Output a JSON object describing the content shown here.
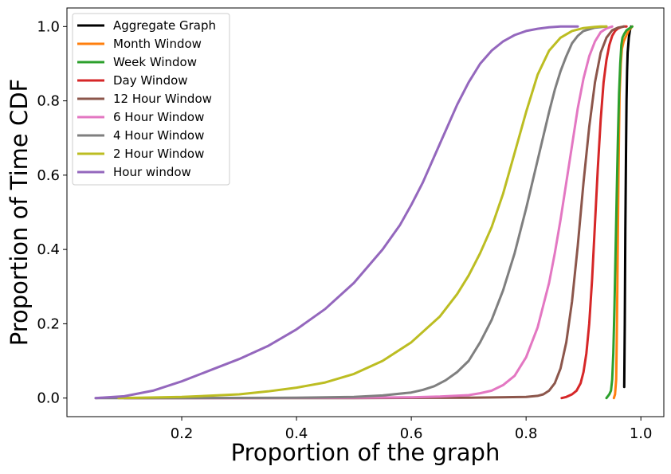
{
  "chart_data": {
    "type": "line",
    "title": "",
    "xlabel": "Proportion of the graph",
    "ylabel": "Proportion of Time CDF",
    "xlim": [
      0.0,
      1.04
    ],
    "ylim": [
      -0.05,
      1.05
    ],
    "xticks": [
      0.2,
      0.4,
      0.6,
      0.8,
      1.0
    ],
    "xtick_labels": [
      "0.2",
      "0.4",
      "0.6",
      "0.8",
      "1.0"
    ],
    "yticks": [
      0.0,
      0.2,
      0.4,
      0.6,
      0.8,
      1.0
    ],
    "ytick_labels": [
      "0.0",
      "0.2",
      "0.4",
      "0.6",
      "0.8",
      "1.0"
    ],
    "grid": false,
    "legend_position": "top-left",
    "series": [
      {
        "name": "Aggregate Graph",
        "color": "#000000",
        "x": [
          0.971,
          0.972,
          0.973,
          0.974,
          0.975,
          0.976,
          0.977,
          0.979,
          0.981,
          0.983
        ],
        "y": [
          0.03,
          0.2,
          0.45,
          0.65,
          0.8,
          0.88,
          0.93,
          0.97,
          0.99,
          1.0
        ]
      },
      {
        "name": "Month Window",
        "color": "#ff7f0e",
        "x": [
          0.953,
          0.955,
          0.957,
          0.958,
          0.959,
          0.96,
          0.961,
          0.962,
          0.963,
          0.965,
          0.967,
          0.97,
          0.973,
          0.976,
          0.979,
          0.982,
          0.985
        ],
        "y": [
          0.0,
          0.01,
          0.05,
          0.15,
          0.3,
          0.45,
          0.6,
          0.72,
          0.82,
          0.9,
          0.94,
          0.96,
          0.97,
          0.98,
          0.99,
          0.995,
          1.0
        ]
      },
      {
        "name": "Week Window",
        "color": "#2ca02c",
        "x": [
          0.94,
          0.945,
          0.948,
          0.95,
          0.952,
          0.954,
          0.956,
          0.958,
          0.96,
          0.962,
          0.964,
          0.966,
          0.968,
          0.971,
          0.975,
          0.98,
          0.985
        ],
        "y": [
          0.0,
          0.01,
          0.02,
          0.05,
          0.12,
          0.25,
          0.4,
          0.55,
          0.7,
          0.82,
          0.9,
          0.95,
          0.97,
          0.98,
          0.99,
          0.995,
          1.0
        ]
      },
      {
        "name": "Day Window",
        "color": "#d62728",
        "x": [
          0.862,
          0.87,
          0.88,
          0.888,
          0.895,
          0.9,
          0.905,
          0.91,
          0.915,
          0.92,
          0.925,
          0.93,
          0.935,
          0.94,
          0.945,
          0.95,
          0.955,
          0.96,
          0.965,
          0.97,
          0.975
        ],
        "y": [
          0.0,
          0.003,
          0.01,
          0.02,
          0.04,
          0.07,
          0.12,
          0.2,
          0.32,
          0.47,
          0.62,
          0.75,
          0.85,
          0.91,
          0.95,
          0.975,
          0.988,
          0.995,
          0.998,
          1.0,
          1.0
        ]
      },
      {
        "name": "12 Hour Window",
        "color": "#8c564b",
        "x": [
          0.1,
          0.3,
          0.5,
          0.7,
          0.8,
          0.82,
          0.83,
          0.84,
          0.85,
          0.86,
          0.87,
          0.88,
          0.89,
          0.9,
          0.91,
          0.92,
          0.93,
          0.94,
          0.95,
          0.96,
          0.97
        ],
        "y": [
          0.0,
          0.0,
          0.0,
          0.001,
          0.003,
          0.006,
          0.01,
          0.02,
          0.04,
          0.08,
          0.15,
          0.26,
          0.41,
          0.58,
          0.73,
          0.85,
          0.93,
          0.97,
          0.99,
          0.997,
          1.0
        ]
      },
      {
        "name": "6 Hour Window",
        "color": "#e377c2",
        "x": [
          0.1,
          0.3,
          0.5,
          0.6,
          0.65,
          0.7,
          0.72,
          0.74,
          0.76,
          0.78,
          0.8,
          0.82,
          0.84,
          0.85,
          0.86,
          0.87,
          0.88,
          0.89,
          0.9,
          0.91,
          0.92,
          0.93,
          0.94,
          0.95
        ],
        "y": [
          0.0,
          0.0,
          0.001,
          0.002,
          0.004,
          0.008,
          0.013,
          0.02,
          0.035,
          0.06,
          0.11,
          0.19,
          0.31,
          0.39,
          0.48,
          0.58,
          0.68,
          0.78,
          0.86,
          0.92,
          0.96,
          0.985,
          0.995,
          1.0
        ]
      },
      {
        "name": "4 Hour Window",
        "color": "#7f7f7f",
        "x": [
          0.05,
          0.2,
          0.4,
          0.5,
          0.55,
          0.6,
          0.62,
          0.64,
          0.66,
          0.68,
          0.7,
          0.72,
          0.74,
          0.76,
          0.78,
          0.8,
          0.82,
          0.84,
          0.85,
          0.86,
          0.87,
          0.88,
          0.89,
          0.9,
          0.92,
          0.94
        ],
        "y": [
          0.0,
          0.0,
          0.001,
          0.003,
          0.007,
          0.015,
          0.022,
          0.032,
          0.048,
          0.07,
          0.1,
          0.15,
          0.21,
          0.29,
          0.39,
          0.51,
          0.64,
          0.77,
          0.83,
          0.88,
          0.92,
          0.955,
          0.975,
          0.988,
          0.997,
          1.0
        ]
      },
      {
        "name": "2 Hour Window",
        "color": "#bcbd22",
        "x": [
          0.09,
          0.2,
          0.3,
          0.35,
          0.4,
          0.45,
          0.5,
          0.55,
          0.6,
          0.65,
          0.68,
          0.7,
          0.72,
          0.74,
          0.76,
          0.78,
          0.8,
          0.82,
          0.84,
          0.86,
          0.88,
          0.9,
          0.92,
          0.93,
          0.94
        ],
        "y": [
          0.0,
          0.003,
          0.01,
          0.018,
          0.028,
          0.042,
          0.065,
          0.1,
          0.15,
          0.22,
          0.28,
          0.33,
          0.39,
          0.46,
          0.55,
          0.66,
          0.77,
          0.87,
          0.935,
          0.97,
          0.988,
          0.996,
          0.999,
          1.0,
          1.0
        ]
      },
      {
        "name": "Hour window",
        "color": "#9467bd",
        "x": [
          0.05,
          0.1,
          0.15,
          0.2,
          0.25,
          0.3,
          0.35,
          0.4,
          0.45,
          0.5,
          0.55,
          0.58,
          0.6,
          0.62,
          0.64,
          0.66,
          0.68,
          0.7,
          0.72,
          0.74,
          0.76,
          0.78,
          0.8,
          0.82,
          0.84,
          0.86,
          0.88,
          0.89
        ],
        "y": [
          0.0,
          0.005,
          0.02,
          0.045,
          0.075,
          0.105,
          0.14,
          0.185,
          0.24,
          0.31,
          0.4,
          0.465,
          0.52,
          0.58,
          0.65,
          0.72,
          0.79,
          0.85,
          0.9,
          0.935,
          0.96,
          0.977,
          0.988,
          0.994,
          0.998,
          1.0,
          1.0,
          1.0
        ]
      }
    ]
  }
}
